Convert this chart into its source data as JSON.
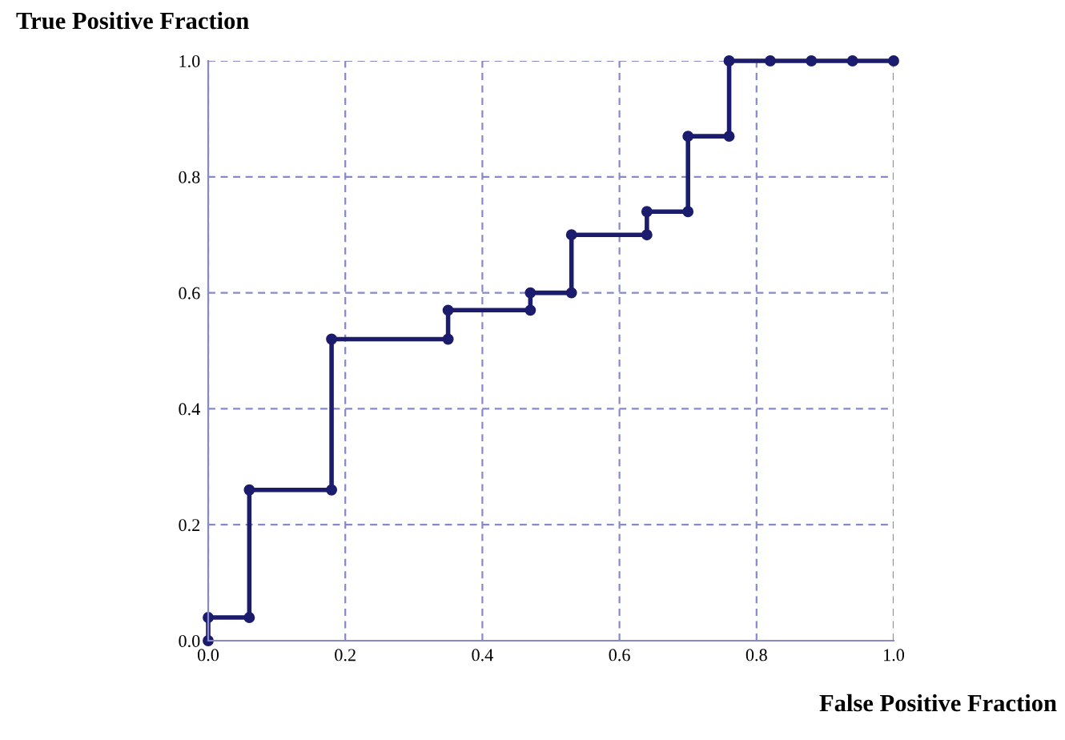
{
  "chart_data": {
    "type": "line",
    "xlabel": "False Positive Fraction",
    "ylabel": "True Positive Fraction",
    "series": [
      {
        "color": "#1c1c6e",
        "x": [
          0,
          0,
          0.06,
          0.06,
          0.18,
          0.18,
          0.35,
          0.35,
          0.47,
          0.47,
          0.53,
          0.53,
          0.64,
          0.64,
          0.7,
          0.7,
          0.76,
          0.76,
          0.82,
          0.88,
          0.94,
          1.0
        ],
        "values": [
          0,
          0.04,
          0.04,
          0.26,
          0.26,
          0.52,
          0.52,
          0.57,
          0.57,
          0.6,
          0.6,
          0.7,
          0.7,
          0.74,
          0.74,
          0.87,
          0.87,
          1.0,
          1.0,
          1.0,
          1.0,
          1.0
        ]
      }
    ],
    "xlim": [
      0,
      1
    ],
    "ylim": [
      0,
      1
    ],
    "xticks": [
      {
        "value": 0,
        "label": "0.0"
      },
      {
        "value": 0.2,
        "label": "0.2"
      },
      {
        "value": 0.4,
        "label": "0.4"
      },
      {
        "value": 0.6,
        "label": "0.6"
      },
      {
        "value": 0.8,
        "label": "0.8"
      },
      {
        "value": 1,
        "label": "1.0"
      }
    ],
    "yticks": [
      {
        "value": 0,
        "label": "0.0"
      },
      {
        "value": 0.2,
        "label": "0.2"
      },
      {
        "value": 0.4,
        "label": "0.4"
      },
      {
        "value": 0.6,
        "label": "0.6"
      },
      {
        "value": 0.8,
        "label": "0.8"
      },
      {
        "value": 1,
        "label": "1.0"
      }
    ],
    "grid": true,
    "marker": "circle",
    "line_style": "solid",
    "legend": false
  }
}
